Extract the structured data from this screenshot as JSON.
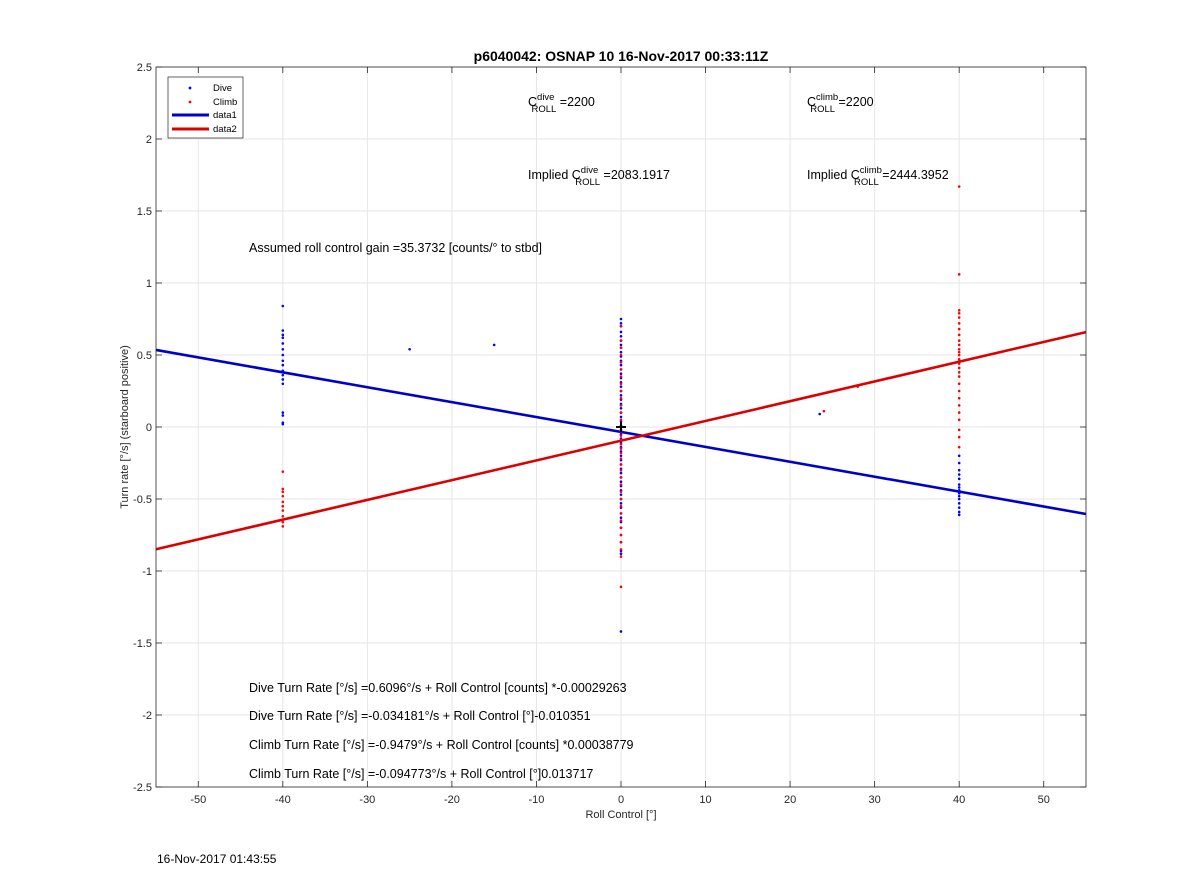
{
  "chart_data": {
    "type": "scatter",
    "title": "p6040042: OSNAP 10 16-Nov-2017 00:33:11Z",
    "xlabel": "Roll Control [°]",
    "ylabel": "Turn rate [°/s] (starboard positive)",
    "xlim": [
      -55,
      55
    ],
    "ylim": [
      -2.5,
      2.5
    ],
    "xticks": [
      -50,
      -40,
      -30,
      -20,
      -10,
      0,
      10,
      20,
      30,
      40,
      50
    ],
    "yticks": [
      -2.5,
      -2,
      -1.5,
      -1,
      -0.5,
      0,
      0.5,
      1,
      1.5,
      2,
      2.5
    ],
    "xtick_labels": [
      "-50",
      "-40",
      "-30",
      "-20",
      "-10",
      "0",
      "10",
      "20",
      "30",
      "40",
      "50"
    ],
    "ytick_labels": [
      "-2.5",
      "-2",
      "-1.5",
      "-1",
      "-0.5",
      "0",
      "0.5",
      "1",
      "1.5",
      "2",
      "2.5"
    ],
    "grid": true,
    "legend_position": "top-left",
    "colors": {
      "dive": "#0000ff",
      "climb": "#ff0000",
      "data1": "#0000cc",
      "data2": "#dd0000",
      "marker": "#000000"
    },
    "series": [
      {
        "name": "Dive",
        "kind": "points",
        "points": [
          [
            -40,
            0.84
          ],
          [
            -40,
            0.67
          ],
          [
            -40,
            0.64
          ],
          [
            -40,
            0.62
          ],
          [
            -40,
            0.58
          ],
          [
            -40,
            0.54
          ],
          [
            -40,
            0.5
          ],
          [
            -40,
            0.46
          ],
          [
            -40,
            0.43
          ],
          [
            -40,
            0.39
          ],
          [
            -40,
            0.36
          ],
          [
            -40,
            0.33
          ],
          [
            -40,
            0.3
          ],
          [
            -40,
            0.1
          ],
          [
            -40,
            0.08
          ],
          [
            -40,
            0.03
          ],
          [
            -40,
            0.02
          ],
          [
            -25,
            0.54
          ],
          [
            -15,
            0.57
          ],
          [
            0,
            0.75
          ],
          [
            0,
            0.72
          ],
          [
            0,
            0.7
          ],
          [
            0,
            0.66
          ],
          [
            0,
            0.63
          ],
          [
            0,
            0.6
          ],
          [
            0,
            0.57
          ],
          [
            0,
            0.55
          ],
          [
            0,
            0.52
          ],
          [
            0,
            0.49
          ],
          [
            0,
            0.46
          ],
          [
            0,
            0.43
          ],
          [
            0,
            0.4
          ],
          [
            0,
            0.37
          ],
          [
            0,
            0.34
          ],
          [
            0,
            0.31
          ],
          [
            0,
            0.28
          ],
          [
            0,
            0.25
          ],
          [
            0,
            0.22
          ],
          [
            0,
            0.19
          ],
          [
            0,
            0.16
          ],
          [
            0,
            0.13
          ],
          [
            0,
            0.1
          ],
          [
            0,
            0.07
          ],
          [
            0,
            0.04
          ],
          [
            0,
            0.01
          ],
          [
            0,
            -0.02
          ],
          [
            0,
            -0.05
          ],
          [
            0,
            -0.08
          ],
          [
            0,
            -0.11
          ],
          [
            0,
            -0.14
          ],
          [
            0,
            -0.17
          ],
          [
            0,
            -0.2
          ],
          [
            0,
            -0.23
          ],
          [
            0,
            -0.26
          ],
          [
            0,
            -0.29
          ],
          [
            0,
            -0.32
          ],
          [
            0,
            -0.35
          ],
          [
            0,
            -0.38
          ],
          [
            0,
            -0.41
          ],
          [
            0,
            -0.44
          ],
          [
            0,
            -0.47
          ],
          [
            0,
            -0.5
          ],
          [
            0,
            -0.53
          ],
          [
            0,
            -0.56
          ],
          [
            0,
            -0.6
          ],
          [
            0,
            -0.63
          ],
          [
            0,
            -0.66
          ],
          [
            0,
            -0.7
          ],
          [
            0,
            -0.75
          ],
          [
            0,
            -0.8
          ],
          [
            0,
            -0.86
          ],
          [
            0,
            -0.88
          ],
          [
            0,
            -1.42
          ],
          [
            23.5,
            0.09
          ],
          [
            40,
            -0.2
          ],
          [
            40,
            -0.25
          ],
          [
            40,
            -0.3
          ],
          [
            40,
            -0.33
          ],
          [
            40,
            -0.36
          ],
          [
            40,
            -0.4
          ],
          [
            40,
            -0.42
          ],
          [
            40,
            -0.44
          ],
          [
            40,
            -0.46
          ],
          [
            40,
            -0.48
          ],
          [
            40,
            -0.5
          ],
          [
            40,
            -0.53
          ],
          [
            40,
            -0.56
          ],
          [
            40,
            -0.59
          ],
          [
            40,
            -0.61
          ]
        ]
      },
      {
        "name": "Climb",
        "kind": "points",
        "points": [
          [
            -40,
            -0.31
          ],
          [
            -40,
            -0.43
          ],
          [
            -40,
            -0.45
          ],
          [
            -40,
            -0.48
          ],
          [
            -40,
            -0.52
          ],
          [
            -40,
            -0.55
          ],
          [
            -40,
            -0.58
          ],
          [
            -40,
            -0.62
          ],
          [
            -40,
            -0.66
          ],
          [
            -40,
            -0.69
          ],
          [
            0,
            0.7
          ],
          [
            0,
            0.6
          ],
          [
            0,
            0.55
          ],
          [
            0,
            0.5
          ],
          [
            0,
            0.45
          ],
          [
            0,
            0.4
          ],
          [
            0,
            0.35
          ],
          [
            0,
            0.3
          ],
          [
            0,
            0.25
          ],
          [
            0,
            0.2
          ],
          [
            0,
            0.15
          ],
          [
            0,
            0.1
          ],
          [
            0,
            0.05
          ],
          [
            0,
            0.0
          ],
          [
            0,
            -0.03
          ],
          [
            0,
            -0.06
          ],
          [
            0,
            -0.09
          ],
          [
            0,
            -0.12
          ],
          [
            0,
            -0.15
          ],
          [
            0,
            -0.18
          ],
          [
            0,
            -0.22
          ],
          [
            0,
            -0.26
          ],
          [
            0,
            -0.3
          ],
          [
            0,
            -0.35
          ],
          [
            0,
            -0.4
          ],
          [
            0,
            -0.45
          ],
          [
            0,
            -0.5
          ],
          [
            0,
            -0.55
          ],
          [
            0,
            -0.6
          ],
          [
            0,
            -0.65
          ],
          [
            0,
            -0.7
          ],
          [
            0,
            -0.75
          ],
          [
            0,
            -0.8
          ],
          [
            0,
            -0.85
          ],
          [
            0,
            -0.9
          ],
          [
            0,
            -1.11
          ],
          [
            24,
            0.11
          ],
          [
            28,
            0.28
          ],
          [
            40,
            1.67
          ],
          [
            40,
            1.06
          ],
          [
            40,
            0.81
          ],
          [
            40,
            0.79
          ],
          [
            40,
            0.76
          ],
          [
            40,
            0.72
          ],
          [
            40,
            0.68
          ],
          [
            40,
            0.64
          ],
          [
            40,
            0.6
          ],
          [
            40,
            0.57
          ],
          [
            40,
            0.54
          ],
          [
            40,
            0.52
          ],
          [
            40,
            0.5
          ],
          [
            40,
            0.47
          ],
          [
            40,
            0.44
          ],
          [
            40,
            0.41
          ],
          [
            40,
            0.38
          ],
          [
            40,
            0.35
          ],
          [
            40,
            0.3
          ],
          [
            40,
            0.25
          ],
          [
            40,
            0.2
          ],
          [
            40,
            0.15
          ],
          [
            40,
            0.1
          ],
          [
            40,
            0.05
          ],
          [
            40,
            -0.02
          ],
          [
            40,
            -0.07
          ],
          [
            40,
            -0.14
          ]
        ]
      },
      {
        "name": "data1",
        "kind": "line",
        "x": [
          -55,
          55
        ],
        "y": [
          0.535,
          -0.604
        ]
      },
      {
        "name": "data2",
        "kind": "line",
        "x": [
          -55,
          55
        ],
        "y": [
          -0.849,
          0.659
        ]
      }
    ],
    "marker": {
      "symbol": "+",
      "x": 0,
      "y": 0
    },
    "annotations": {
      "croll_dive": {
        "prefix": "C",
        "sup": "dive",
        "sub": "ROLL",
        "suffix": " =2200"
      },
      "croll_climb": {
        "prefix": "C",
        "sup": "climb",
        "sub": "ROLL",
        "suffix": " =2200"
      },
      "implied_dive": {
        "prefix": "Implied C",
        "sup": "dive",
        "sub": "ROLL",
        "suffix": " =2083.1917"
      },
      "implied_climb": {
        "prefix": "Implied C",
        "sup": "climb",
        "sub": "ROLL",
        "suffix": " =2444.3952"
      },
      "gain": "Assumed roll control gain =35.3732 [counts/° to stbd]",
      "eq1": "Dive Turn Rate [°/s] =0.6096°/s + Roll Control [counts] *-0.00029263",
      "eq2": "Dive Turn Rate [°/s] =-0.034181°/s + Roll Control [°]-0.010351",
      "eq3": "Climb Turn Rate [°/s] =-0.9479°/s + Roll Control [counts] *0.00038779",
      "eq4": "Climb Turn Rate [°/s] =-0.094773°/s + Roll Control [°]0.013717"
    }
  },
  "footer_timestamp": "16-Nov-2017 01:43:55"
}
